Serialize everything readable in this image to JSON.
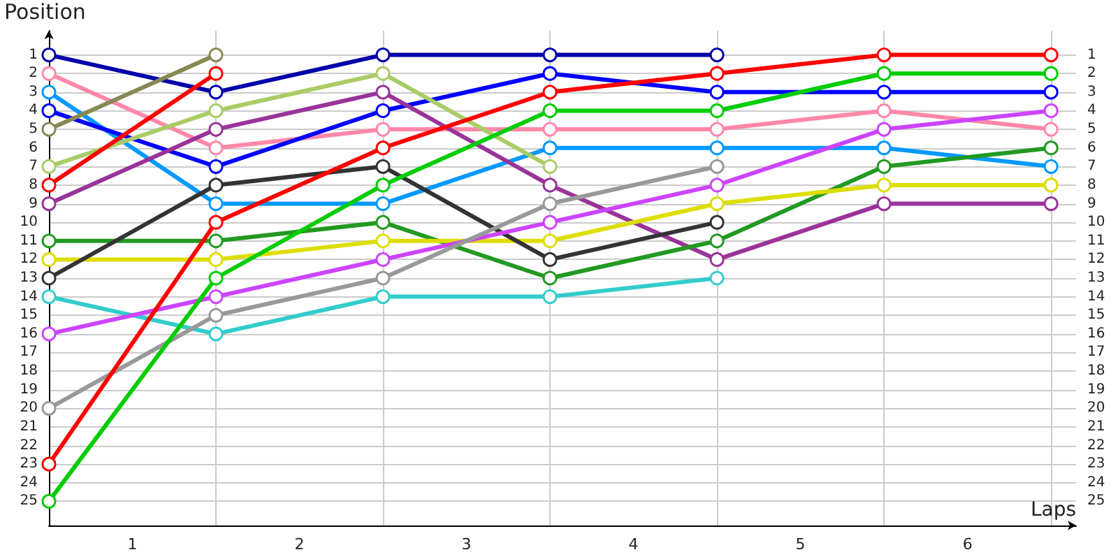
{
  "chart_data": {
    "type": "line",
    "xlabel": "Laps",
    "ylabel": "Position",
    "x": [
      0,
      1,
      2,
      3,
      4,
      5,
      6
    ],
    "xlim": [
      0,
      6.15
    ],
    "xticks": [
      {
        "value": 0,
        "label": null
      },
      {
        "value": 0.5,
        "label": "1"
      },
      {
        "value": 1,
        "label": null
      },
      {
        "value": 1.5,
        "label": "2"
      },
      {
        "value": 2,
        "label": null
      },
      {
        "value": 2.5,
        "label": "3"
      },
      {
        "value": 3,
        "label": null
      },
      {
        "value": 3.5,
        "label": "4"
      },
      {
        "value": 4,
        "label": null
      },
      {
        "value": 4.5,
        "label": "5"
      },
      {
        "value": 5,
        "label": null
      },
      {
        "value": 5.5,
        "label": "6"
      },
      {
        "value": 6,
        "label": null
      }
    ],
    "ylim": [
      26.3,
      -0.3
    ],
    "yticks": [
      1,
      2,
      3,
      4,
      5,
      6,
      7,
      8,
      9,
      10,
      11,
      12,
      13,
      14,
      15,
      16,
      17,
      18,
      19,
      20,
      21,
      22,
      23,
      24,
      25
    ],
    "y2lim": [
      26.3,
      -0.3
    ],
    "y2ticks": [
      1,
      2,
      3,
      4,
      5,
      6,
      7,
      8,
      9,
      10,
      11,
      12,
      13,
      14,
      15,
      16,
      17,
      18,
      19,
      20,
      21,
      22,
      23,
      24,
      25
    ],
    "grid": true,
    "marker": "circle",
    "line_style": "solid",
    "series": [
      {
        "color": "#0000aa",
        "values": [
          1,
          3,
          1,
          1,
          1,
          null,
          null
        ]
      },
      {
        "color": "#ff88aa",
        "values": [
          2,
          6,
          5,
          5,
          5,
          4,
          5
        ]
      },
      {
        "color": "#0099ff",
        "values": [
          3,
          9,
          9,
          6,
          6,
          6,
          7
        ]
      },
      {
        "color": "#0000ff",
        "values": [
          4,
          7,
          4,
          2,
          3,
          3,
          3
        ]
      },
      {
        "color": "#888855",
        "values": [
          5,
          1,
          null,
          null,
          null,
          null,
          null
        ]
      },
      {
        "color": "#aacc66",
        "values": [
          7,
          4,
          2,
          7,
          null,
          null,
          null
        ]
      },
      {
        "color": "#ff0000",
        "values": [
          8,
          2,
          null,
          null,
          null,
          null,
          null
        ]
      },
      {
        "color": "#993399",
        "values": [
          9,
          5,
          3,
          8,
          12,
          9,
          9
        ]
      },
      {
        "color": "#229922",
        "values": [
          11,
          11,
          10,
          13,
          11,
          7,
          6
        ]
      },
      {
        "color": "#dddd00",
        "values": [
          12,
          12,
          11,
          11,
          9,
          8,
          8
        ]
      },
      {
        "color": "#333333",
        "values": [
          13,
          8,
          7,
          12,
          10,
          null,
          null
        ]
      },
      {
        "color": "#33cccc",
        "values": [
          14,
          16,
          14,
          14,
          13,
          null,
          null
        ]
      },
      {
        "color": "#cc44ff",
        "values": [
          16,
          14,
          12,
          10,
          8,
          5,
          4
        ]
      },
      {
        "color": "#999999",
        "values": [
          20,
          15,
          13,
          9,
          7,
          null,
          null
        ]
      },
      {
        "color": "#ff0000",
        "values": [
          23,
          10,
          6,
          3,
          2,
          1,
          1
        ]
      },
      {
        "color": "#00cc00",
        "values": [
          25,
          13,
          8,
          4,
          4,
          2,
          2
        ]
      }
    ]
  }
}
